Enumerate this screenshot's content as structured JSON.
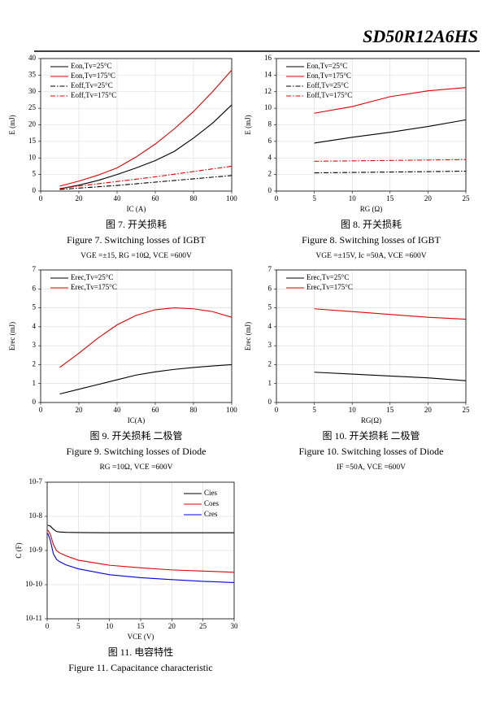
{
  "header": {
    "title": "SD50R12A6HS"
  },
  "chart_data": [
    {
      "type": "line",
      "title": "图 7. 开关损耗",
      "subtitle": "Figure 7.  Switching losses of IGBT",
      "note": "VGE =±15, RG =10Ω, VCE =600V",
      "x_label": "IC (A)",
      "y_label": "E (mJ)",
      "legend": "upper left",
      "grid": true,
      "x": [
        10,
        20,
        30,
        40,
        50,
        60,
        70,
        80,
        90,
        100
      ],
      "xlim": [
        0,
        100
      ],
      "xticks": [
        0,
        20,
        40,
        60,
        80,
        100
      ],
      "ylim": [
        0,
        40
      ],
      "yticks": [
        0,
        5,
        10,
        15,
        20,
        25,
        30,
        35,
        40
      ],
      "series": [
        {
          "name": "Eon,Tv=25°C",
          "color": "#000000",
          "dash": "solid",
          "values": [
            0.7,
            1.8,
            3.2,
            5,
            7,
            9.2,
            12,
            16,
            20.5,
            26
          ]
        },
        {
          "name": "Eon,Tv=175°C",
          "color": "#e00000",
          "dash": "solid",
          "values": [
            1.5,
            3,
            4.8,
            7,
            10.3,
            14.2,
            18.8,
            24,
            30,
            36.5
          ]
        },
        {
          "name": "Eoff,Tv=25°C",
          "color": "#000000",
          "dash": "dashdot",
          "values": [
            0.5,
            0.9,
            1.3,
            1.7,
            2.2,
            2.7,
            3.2,
            3.7,
            4.2,
            4.7
          ]
        },
        {
          "name": "Eoff,Tv=175°C",
          "color": "#e00000",
          "dash": "dashdot",
          "values": [
            0.8,
            1.5,
            2.2,
            2.9,
            3.6,
            4.3,
            5.1,
            5.9,
            6.7,
            7.5
          ]
        }
      ]
    },
    {
      "type": "line",
      "title": "图 8. 开关损耗",
      "subtitle": "Figure 8.  Switching losses of IGBT",
      "note": "VGE =±15V, Ic =50A, VCE =600V",
      "x_label": "RG (Ω)",
      "y_label": "E (mJ)",
      "legend": "upper left",
      "grid": true,
      "x": [
        5,
        10,
        15,
        20,
        25
      ],
      "xlim": [
        0,
        25
      ],
      "xticks": [
        0,
        5,
        10,
        15,
        20,
        25
      ],
      "ylim": [
        0,
        16
      ],
      "yticks": [
        0,
        2,
        4,
        6,
        8,
        10,
        12,
        14,
        16
      ],
      "series": [
        {
          "name": "Eon,Tv=25°C",
          "color": "#000000",
          "dash": "solid",
          "values": [
            5.8,
            6.5,
            7.1,
            7.8,
            8.6
          ]
        },
        {
          "name": "Eon,Tv=175°C",
          "color": "#e00000",
          "dash": "solid",
          "values": [
            9.4,
            10.2,
            11.4,
            12.1,
            12.5
          ]
        },
        {
          "name": "Eoff,Tv=25°C",
          "color": "#000000",
          "dash": "dashdot",
          "values": [
            2.2,
            2.25,
            2.3,
            2.35,
            2.4
          ]
        },
        {
          "name": "Eoff,Tv=175°C",
          "color": "#e00000",
          "dash": "dashdot",
          "values": [
            3.6,
            3.65,
            3.7,
            3.75,
            3.8
          ]
        }
      ]
    },
    {
      "type": "line",
      "title": "图 9. 开关损耗  二极管",
      "subtitle": "Figure 9.  Switching losses of Diode",
      "note": "RG =10Ω, VCE =600V",
      "x_label": "IC(A)",
      "y_label": "Erec (mJ)",
      "legend": "upper left",
      "grid": true,
      "x": [
        10,
        20,
        30,
        40,
        50,
        60,
        70,
        80,
        90,
        100
      ],
      "xlim": [
        0,
        100
      ],
      "xticks": [
        0,
        20,
        40,
        60,
        80,
        100
      ],
      "ylim": [
        0,
        7
      ],
      "yticks": [
        0,
        1,
        2,
        3,
        4,
        5,
        6,
        7
      ],
      "series": [
        {
          "name": "Erec,Tv=25°C",
          "color": "#000000",
          "dash": "solid",
          "values": [
            0.45,
            0.7,
            0.95,
            1.2,
            1.45,
            1.62,
            1.75,
            1.85,
            1.93,
            2.0
          ]
        },
        {
          "name": "Erec,Tv=175°C",
          "color": "#e00000",
          "dash": "solid",
          "values": [
            1.85,
            2.6,
            3.4,
            4.1,
            4.6,
            4.9,
            5.0,
            4.95,
            4.8,
            4.5
          ]
        }
      ]
    },
    {
      "type": "line",
      "title": "图 10. 开关损耗  二极管",
      "subtitle": "Figure 10.  Switching losses of Diode",
      "note": "IF =50A, VCE =600V",
      "x_label": "RG(Ω)",
      "y_label": "Erec (mJ)",
      "legend": "upper left",
      "grid": true,
      "x": [
        5,
        10,
        15,
        20,
        25
      ],
      "xlim": [
        0,
        25
      ],
      "xticks": [
        0,
        5,
        10,
        15,
        20,
        25
      ],
      "ylim": [
        0,
        7
      ],
      "yticks": [
        0,
        1,
        2,
        3,
        4,
        5,
        6,
        7
      ],
      "series": [
        {
          "name": "Erec,Tv=25°C",
          "color": "#000000",
          "dash": "solid",
          "values": [
            1.6,
            1.5,
            1.4,
            1.3,
            1.15
          ]
        },
        {
          "name": "Erec,Tv=175°C",
          "color": "#e00000",
          "dash": "solid",
          "values": [
            4.95,
            4.8,
            4.65,
            4.5,
            4.4
          ]
        }
      ]
    },
    {
      "type": "line",
      "title": "图 11. 电容特性",
      "subtitle": "Figure 11.  Capacitance characteristic",
      "x_label": "VCE (V)",
      "y_label": "C (F)",
      "legend": "upper right",
      "grid": true,
      "log_y": true,
      "x": [
        0.1,
        0.5,
        1,
        1.5,
        2,
        3,
        5,
        10,
        15,
        20,
        25,
        30
      ],
      "xlim": [
        0,
        30
      ],
      "xticks": [
        0,
        5,
        10,
        15,
        20,
        25,
        30
      ],
      "ylim": [
        1e-11,
        1e-07
      ],
      "yticks": [
        {
          "value": 1e-11,
          "label": "10-11"
        },
        {
          "value": 1e-10,
          "label": "10-10"
        },
        {
          "value": 1e-09,
          "label": "10-9"
        },
        {
          "value": 1e-08,
          "label": "10-8"
        },
        {
          "value": 1e-07,
          "label": "10-7"
        }
      ],
      "series": [
        {
          "name": "Cies",
          "color": "#000000",
          "dash": "solid",
          "values": [
            5.5e-09,
            5.2e-09,
            4.2e-09,
            3.6e-09,
            3.5e-09,
            3.4e-09,
            3.35e-09,
            3.3e-09,
            3.3e-09,
            3.3e-09,
            3.3e-09,
            3.3e-09
          ]
        },
        {
          "name": "Coes",
          "color": "#e00000",
          "dash": "solid",
          "values": [
            4e-09,
            3e-09,
            1.5e-09,
            1e-09,
            8.5e-10,
            7e-10,
            5.2e-10,
            3.7e-10,
            3.1e-10,
            2.7e-10,
            2.5e-10,
            2.3e-10
          ]
        },
        {
          "name": "Cres",
          "color": "#0000e0",
          "dash": "solid",
          "values": [
            3.2e-09,
            2e-09,
            8e-10,
            5.5e-10,
            4.7e-10,
            3.8e-10,
            2.9e-10,
            1.95e-10,
            1.6e-10,
            1.4e-10,
            1.25e-10,
            1.15e-10
          ]
        }
      ]
    }
  ]
}
